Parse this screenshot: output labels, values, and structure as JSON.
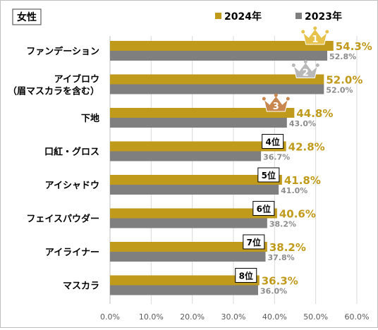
{
  "chart_data": {
    "type": "bar",
    "orientation": "horizontal",
    "title": "女性",
    "categories": [
      [
        "ファンデーション"
      ],
      [
        "アイブロウ",
        "（眉マスカラを含む）"
      ],
      [
        "下地"
      ],
      [
        "口紅・グロス"
      ],
      [
        "アイシャドウ"
      ],
      [
        "フェイスパウダー"
      ],
      [
        "アイライナー"
      ],
      [
        "マスカラ"
      ]
    ],
    "series": [
      {
        "name": "2024年",
        "color": "#c09a1a",
        "label_color": "#c09a1a",
        "values": [
          54.3,
          52.0,
          44.8,
          42.8,
          41.8,
          40.6,
          38.2,
          36.3
        ],
        "labels": [
          "54.3%",
          "52.0%",
          "44.8%",
          "42.8%",
          "41.8%",
          "40.6%",
          "38.2%",
          "36.3%"
        ]
      },
      {
        "name": "2023年",
        "color": "#7f7f7f",
        "label_color": "#8c8c8c",
        "values": [
          52.8,
          52.0,
          43.0,
          36.7,
          41.0,
          38.2,
          37.8,
          36.0
        ],
        "labels": [
          "52.8%",
          "52.0%",
          "43.0%",
          "36.7%",
          "41.0%",
          "38.2%",
          "37.8%",
          "36.0%"
        ]
      }
    ],
    "ranks": [
      {
        "label": "1",
        "kind": "crown",
        "color": "#e6c24a"
      },
      {
        "label": "2",
        "kind": "crown",
        "color": "#b8b8b8"
      },
      {
        "label": "3",
        "kind": "crown",
        "color": "#c8874e"
      },
      {
        "label": "4位",
        "kind": "box"
      },
      {
        "label": "5位",
        "kind": "box"
      },
      {
        "label": "6位",
        "kind": "box"
      },
      {
        "label": "7位",
        "kind": "box"
      },
      {
        "label": "8位",
        "kind": "box"
      }
    ],
    "xlim": [
      0,
      60
    ],
    "xticks": [
      "0.0%",
      "10.0%",
      "20.0%",
      "30.0%",
      "40.0%",
      "50.0%",
      "60.0%"
    ],
    "grid": true,
    "legend_position": "top-right"
  }
}
